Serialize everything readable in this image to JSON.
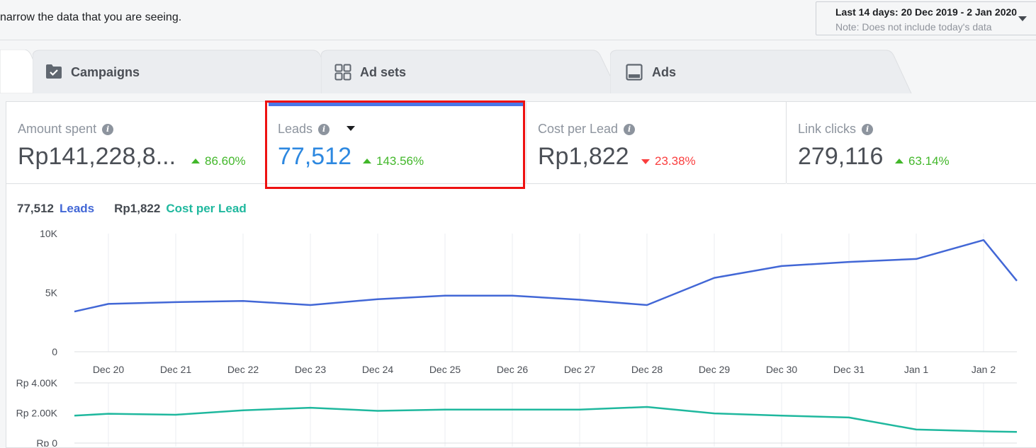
{
  "topbar": {
    "hint_text": "narrow the data that you are seeing.",
    "date_range": "Last 14 days: 20 Dec 2019 - 2 Jan 2020",
    "date_note": "Note: Does not include today's data"
  },
  "tabs": [
    {
      "label": "Campaigns",
      "icon": "folder-check-icon"
    },
    {
      "label": "Ad sets",
      "icon": "grid-icon"
    },
    {
      "label": "Ads",
      "icon": "ad-screen-icon"
    }
  ],
  "metrics": [
    {
      "label": "Amount spent",
      "value": "Rp141,228,8...",
      "change": "86.60%",
      "direction": "up"
    },
    {
      "label": "Leads",
      "value": "77,512",
      "change": "143.56%",
      "direction": "up",
      "selected": true
    },
    {
      "label": "Cost per Lead",
      "value": "Rp1,822",
      "change": "23.38%",
      "direction": "down"
    },
    {
      "label": "Link clicks",
      "value": "279,116",
      "change": "63.14%",
      "direction": "up"
    }
  ],
  "legend": {
    "leads_value": "77,512",
    "leads_label": "Leads",
    "cpl_value": "Rp1,822",
    "cpl_label": "Cost per Lead"
  },
  "colors": {
    "leads": "#4267d6",
    "cost_per_lead": "#1fb89e",
    "selected_bar": "#4a76e8",
    "highlight_frame": "#ee1111"
  },
  "chart_data": [
    {
      "type": "line",
      "categories": [
        "Dec 20",
        "Dec 21",
        "Dec 22",
        "Dec 23",
        "Dec 24",
        "Dec 25",
        "Dec 26",
        "Dec 27",
        "Dec 28",
        "Dec 29",
        "Dec 30",
        "Dec 31",
        "Jan 1",
        "Jan 2"
      ],
      "series": [
        {
          "name": "Leads",
          "values": [
            4050,
            4200,
            4300,
            3950,
            4450,
            4750,
            4750,
            4400,
            3950,
            6250,
            7250,
            7600,
            7850,
            9450
          ]
        }
      ],
      "yticks": [
        "10K",
        "5K",
        "0"
      ],
      "ylim": [
        0,
        10000
      ],
      "grid": true
    },
    {
      "type": "line",
      "categories": [
        "Dec 20",
        "Dec 21",
        "Dec 22",
        "Dec 23",
        "Dec 24",
        "Dec 25",
        "Dec 26",
        "Dec 27",
        "Dec 28",
        "Dec 29",
        "Dec 30",
        "Dec 31",
        "Jan 1",
        "Jan 2"
      ],
      "series": [
        {
          "name": "Cost per Lead",
          "values": [
            1950,
            1880,
            2180,
            2350,
            2140,
            2220,
            2220,
            2220,
            2400,
            1970,
            1820,
            1700,
            900,
            780
          ]
        }
      ],
      "yticks": [
        "Rp 4.00K",
        "Rp 2.00K",
        "Rp 0"
      ],
      "ylim": [
        0,
        4000
      ],
      "grid": true
    }
  ]
}
